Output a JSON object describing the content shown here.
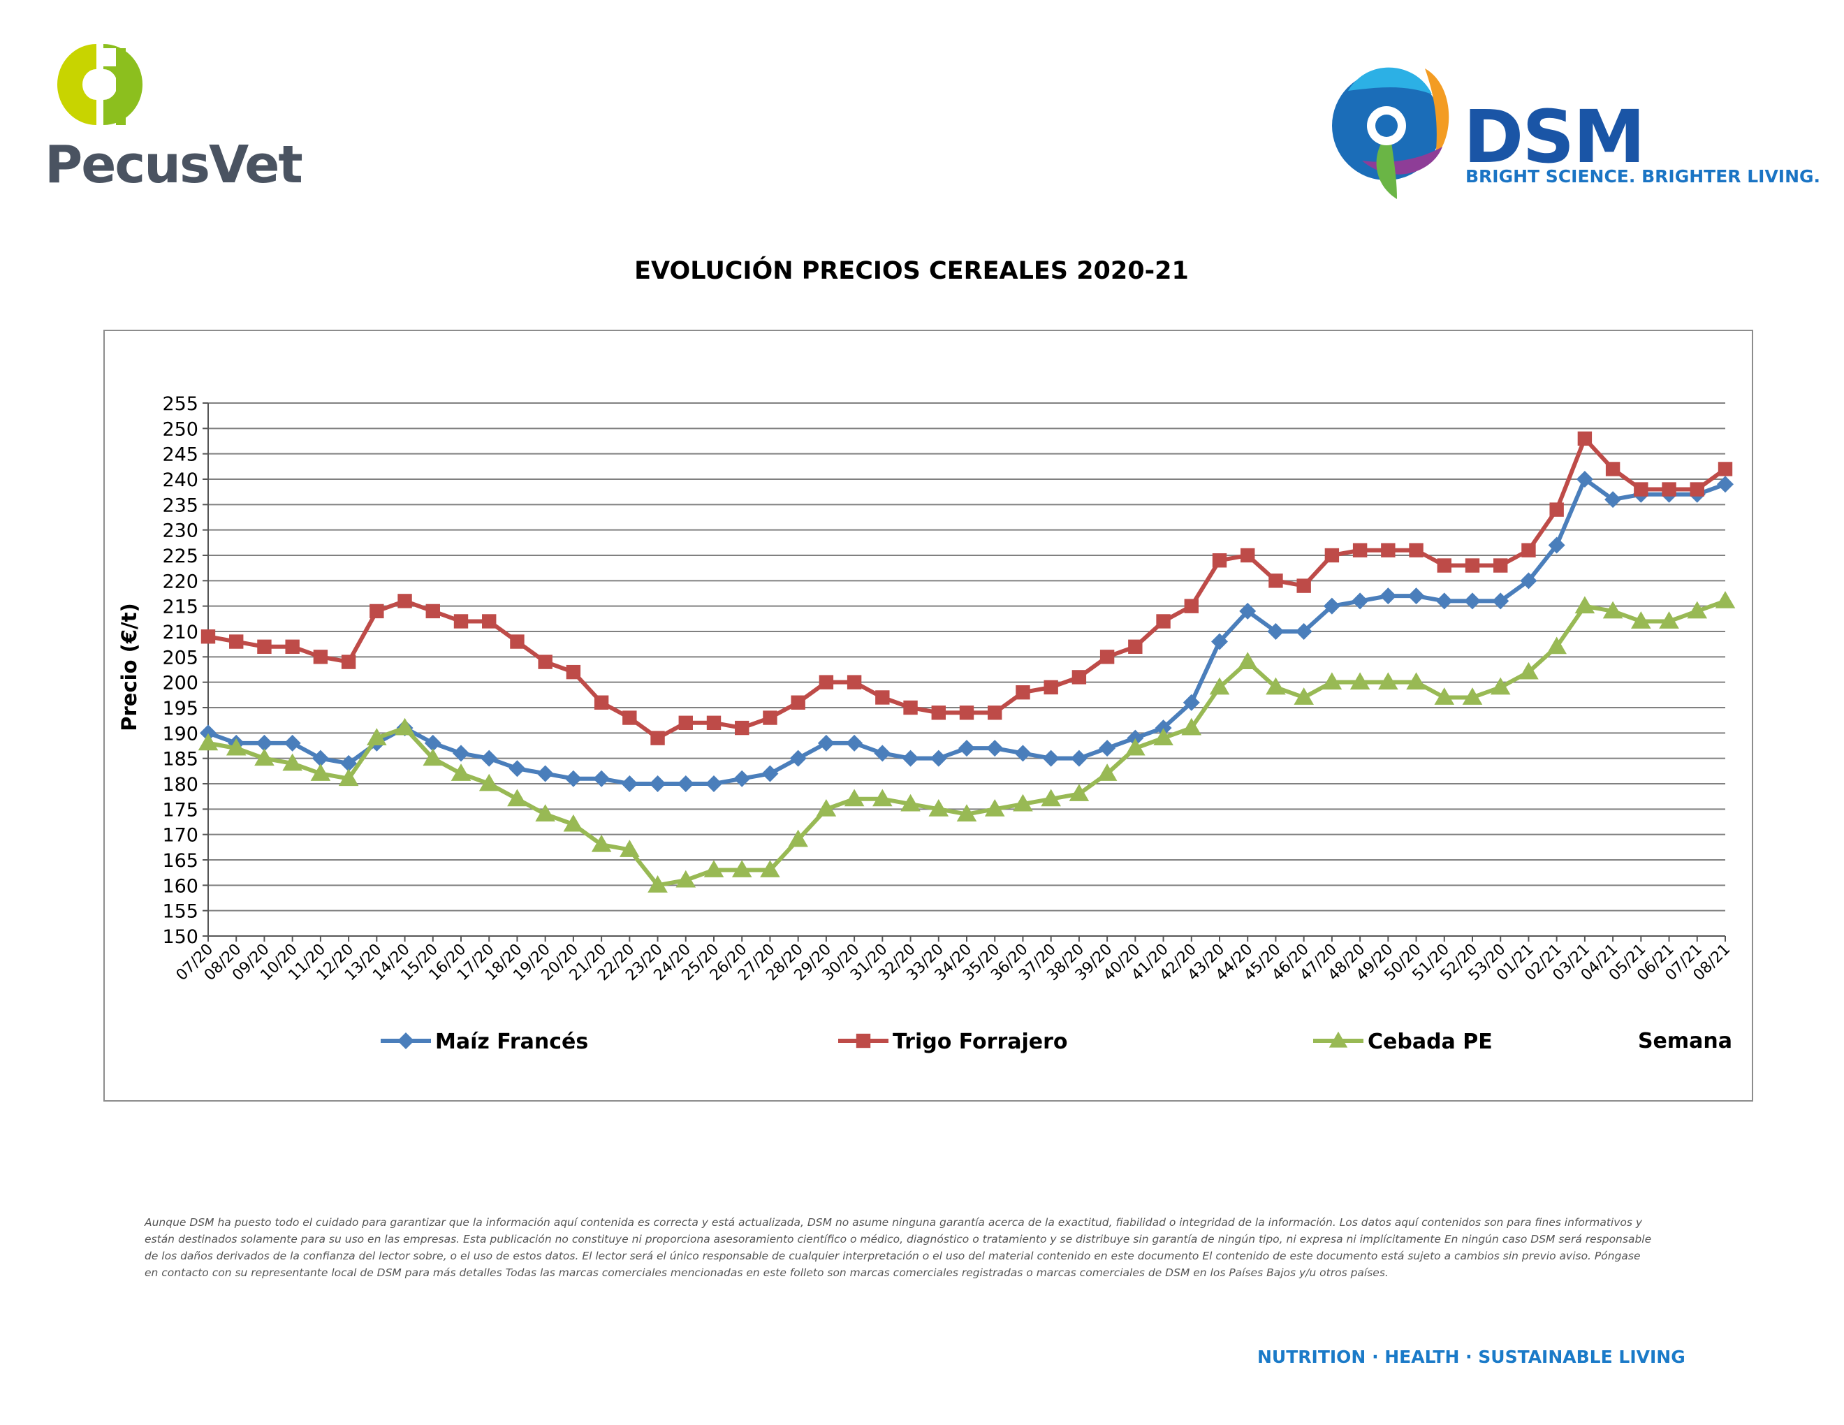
{
  "logos": {
    "pecusvet": "PecusVet",
    "dsm_name": "DSM",
    "dsm_tagline": "BRIGHT SCIENCE. BRIGHTER LIVING."
  },
  "colors": {
    "maiz": "#4a7ebb",
    "trigo": "#be4b48",
    "cebada": "#98b954",
    "gridline": "#808080",
    "footer": "#1a7ac8"
  },
  "chart_data": {
    "type": "line",
    "title": "EVOLUCIÓN PRECIOS CEREALES 2020-21",
    "ylabel": "Precio (€/t)",
    "xlabel": "Semana",
    "ylim": [
      150,
      255
    ],
    "ytick_step": 5,
    "grid": "horizontal",
    "legend_position": "bottom",
    "categories": [
      "07/20",
      "08/20",
      "09/20",
      "10/20",
      "11/20",
      "12/20",
      "13/20",
      "14/20",
      "15/20",
      "16/20",
      "17/20",
      "18/20",
      "19/20",
      "20/20",
      "21/20",
      "22/20",
      "23/20",
      "24/20",
      "25/20",
      "26/20",
      "27/20",
      "28/20",
      "29/20",
      "30/20",
      "31/20",
      "32/20",
      "33/20",
      "34/20",
      "35/20",
      "36/20",
      "37/20",
      "38/20",
      "39/20",
      "40/20",
      "41/20",
      "42/20",
      "43/20",
      "44/20",
      "45/20",
      "46/20",
      "47/20",
      "48/20",
      "49/20",
      "50/20",
      "51/20",
      "52/20",
      "53/20",
      "01/21",
      "02/21",
      "03/21",
      "04/21",
      "05/21",
      "06/21",
      "07/21",
      "08/21"
    ],
    "series": [
      {
        "name": "Maíz Francés",
        "color": "#4a7ebb",
        "marker": "diamond",
        "values": [
          190,
          188,
          188,
          188,
          185,
          184,
          188,
          191,
          188,
          186,
          185,
          183,
          182,
          181,
          181,
          180,
          180,
          180,
          180,
          181,
          182,
          185,
          188,
          188,
          186,
          185,
          185,
          187,
          187,
          186,
          185,
          185,
          187,
          189,
          191,
          196,
          208,
          214,
          210,
          210,
          215,
          216,
          217,
          217,
          216,
          216,
          216,
          220,
          227,
          240,
          236,
          237,
          237,
          237,
          239
        ]
      },
      {
        "name": "Trigo Forrajero",
        "color": "#be4b48",
        "marker": "square",
        "values": [
          209,
          208,
          207,
          207,
          205,
          204,
          214,
          216,
          214,
          212,
          212,
          208,
          204,
          202,
          196,
          193,
          189,
          192,
          192,
          191,
          193,
          196,
          200,
          200,
          197,
          195,
          194,
          194,
          194,
          198,
          199,
          201,
          205,
          207,
          212,
          215,
          224,
          225,
          220,
          219,
          225,
          226,
          226,
          226,
          223,
          223,
          223,
          226,
          234,
          248,
          242,
          238,
          238,
          238,
          242
        ]
      },
      {
        "name": "Cebada PE",
        "color": "#98b954",
        "marker": "triangle",
        "values": [
          188,
          187,
          185,
          184,
          182,
          181,
          189,
          191,
          185,
          182,
          180,
          177,
          174,
          172,
          168,
          167,
          160,
          161,
          163,
          163,
          163,
          169,
          175,
          177,
          177,
          176,
          175,
          174,
          175,
          176,
          177,
          178,
          182,
          187,
          189,
          191,
          199,
          204,
          199,
          197,
          200,
          200,
          200,
          200,
          197,
          197,
          199,
          202,
          207,
          215,
          214,
          212,
          212,
          214,
          216
        ]
      }
    ]
  },
  "disclaimer": "Aunque DSM ha puesto todo el cuidado para garantizar que la información aquí contenida es correcta y está actualizada, DSM no asume ninguna garantía acerca de la exactitud, fiabilidad o integridad de la información. Los datos aquí contenidos son para fines informativos y están destinados solamente para su uso en las empresas. Esta publicación no constituye ni proporciona asesoramiento científico o médico, diagnóstico o tratamiento y se distribuye sin garantía de ningún tipo, ni expresa ni implícitamente En ningún caso DSM será responsable de los daños derivados de la confianza del lector sobre, o el uso de estos datos. El lector será el único responsable de cualquier interpretación o el uso del material contenido en este documento El contenido de este documento está sujeto a cambios sin previo aviso. Póngase en contacto con su representante local de DSM para más detalles Todas las marcas comerciales mencionadas en este folleto son marcas comerciales registradas o marcas comerciales de DSM en los Países Bajos y/u otros países.",
  "footer_tagline": "NUTRITION · HEALTH · SUSTAINABLE LIVING"
}
